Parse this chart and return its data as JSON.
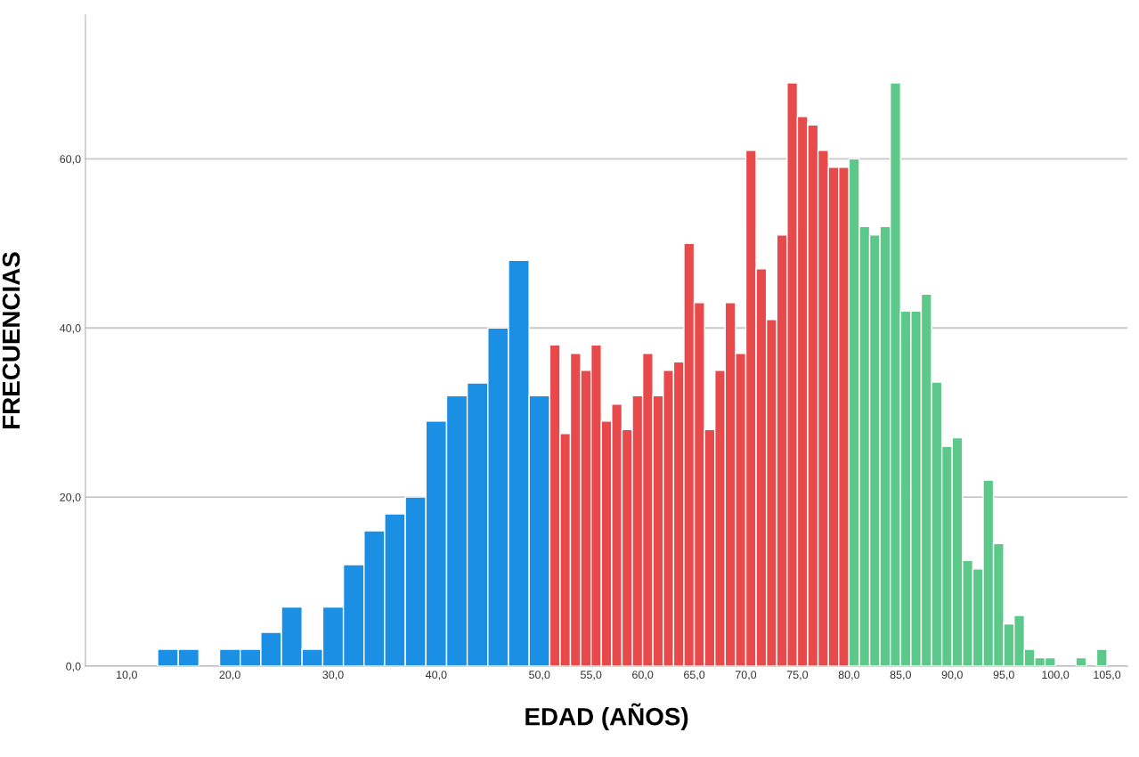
{
  "chart_data": {
    "type": "histogram",
    "xlabel": "EDAD (AÑOS)",
    "ylabel": "FRECUENCIAS",
    "bins": [
      13,
      15,
      17,
      19,
      21,
      23,
      25,
      27,
      29,
      31,
      33,
      35,
      37,
      39,
      41,
      43,
      45,
      47,
      49,
      51,
      52,
      53,
      54,
      55,
      56,
      57,
      58,
      59,
      60,
      61,
      62,
      63,
      64,
      65,
      66,
      67,
      68,
      69,
      70,
      71,
      72,
      73,
      74,
      75,
      76,
      77,
      78,
      79,
      80,
      81,
      82,
      83,
      84,
      85,
      86,
      87,
      88,
      89,
      90,
      91,
      92,
      93,
      94,
      95,
      96,
      97,
      98,
      99,
      100,
      102,
      103,
      104,
      105
    ],
    "values": [
      2,
      2,
      0,
      2,
      2,
      4,
      7,
      2,
      7,
      12,
      16,
      18,
      20,
      29,
      32,
      33.5,
      40,
      48,
      32,
      38,
      27.5,
      37,
      35,
      38,
      29,
      31,
      28,
      32,
      37,
      32,
      35,
      36,
      50,
      43,
      28,
      35,
      43,
      37,
      61,
      47,
      41,
      51,
      69,
      65,
      64,
      61,
      59,
      59,
      60,
      52,
      51,
      52,
      69,
      42,
      42,
      44,
      33.6,
      26,
      27,
      12.5,
      11.5,
      22,
      14.5,
      5,
      6,
      2,
      1,
      1,
      0,
      1,
      0,
      2
    ],
    "colors": [
      "#1a8fe3",
      "#1a8fe3",
      "#1a8fe3",
      "#1a8fe3",
      "#1a8fe3",
      "#1a8fe3",
      "#1a8fe3",
      "#1a8fe3",
      "#1a8fe3",
      "#1a8fe3",
      "#1a8fe3",
      "#1a8fe3",
      "#1a8fe3",
      "#1a8fe3",
      "#1a8fe3",
      "#1a8fe3",
      "#1a8fe3",
      "#1a8fe3",
      "#1a8fe3",
      "#e84a4c",
      "#e84a4c",
      "#e84a4c",
      "#e84a4c",
      "#e84a4c",
      "#e84a4c",
      "#e84a4c",
      "#e84a4c",
      "#e84a4c",
      "#e84a4c",
      "#e84a4c",
      "#e84a4c",
      "#e84a4c",
      "#e84a4c",
      "#e84a4c",
      "#e84a4c",
      "#e84a4c",
      "#e84a4c",
      "#e84a4c",
      "#e84a4c",
      "#e84a4c",
      "#e84a4c",
      "#e84a4c",
      "#e84a4c",
      "#e84a4c",
      "#e84a4c",
      "#e84a4c",
      "#e84a4c",
      "#e84a4c",
      "#5cc98a",
      "#5cc98a",
      "#5cc98a",
      "#5cc98a",
      "#5cc98a",
      "#5cc98a",
      "#5cc98a",
      "#5cc98a",
      "#5cc98a",
      "#5cc98a",
      "#5cc98a",
      "#5cc98a",
      "#5cc98a",
      "#5cc98a",
      "#5cc98a",
      "#5cc98a",
      "#5cc98a",
      "#5cc98a",
      "#5cc98a",
      "#5cc98a",
      "#5cc98a",
      "#5cc98a",
      "#5cc98a",
      "#5cc98a"
    ],
    "xlim": [
      6,
      107
    ],
    "ylim": [
      0,
      77
    ],
    "xticks": [
      {
        "value": 10,
        "label": "10,0"
      },
      {
        "value": 20,
        "label": "20,0"
      },
      {
        "value": 30,
        "label": "30,0"
      },
      {
        "value": 40,
        "label": "40,0"
      },
      {
        "value": 50,
        "label": "50,0"
      },
      {
        "value": 55,
        "label": "55,0"
      },
      {
        "value": 60,
        "label": "60,0"
      },
      {
        "value": 65,
        "label": "65,0"
      },
      {
        "value": 70,
        "label": "70,0"
      },
      {
        "value": 75,
        "label": "75,0"
      },
      {
        "value": 80,
        "label": "80,0"
      },
      {
        "value": 85,
        "label": "85,0"
      },
      {
        "value": 90,
        "label": "90,0"
      },
      {
        "value": 95,
        "label": "95,0"
      },
      {
        "value": 100,
        "label": "100,0"
      },
      {
        "value": 105,
        "label": "105,0"
      }
    ],
    "yticks": [
      {
        "value": 0,
        "label": "0,0"
      },
      {
        "value": 20,
        "label": "20,0"
      },
      {
        "value": 40,
        "label": "40,0"
      },
      {
        "value": 60,
        "label": "60,0"
      }
    ],
    "grid": "y"
  }
}
